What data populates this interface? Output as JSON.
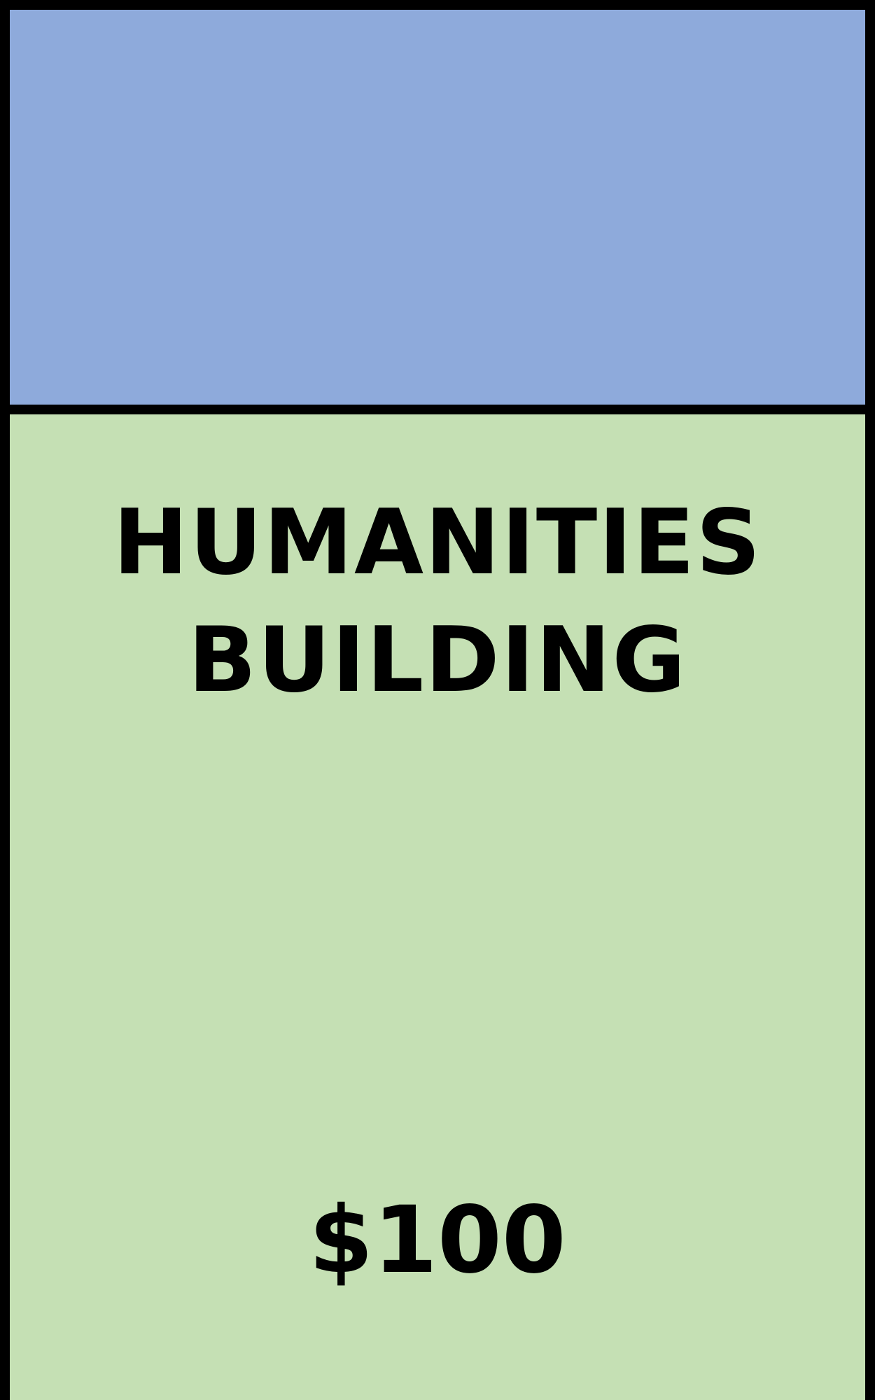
{
  "card": {
    "color_band": "#8eaadb",
    "background": "#c5e0b4",
    "border": "#000000",
    "title_lines": [
      "HUMANITIES",
      "BUILDING"
    ],
    "price": "$100"
  }
}
